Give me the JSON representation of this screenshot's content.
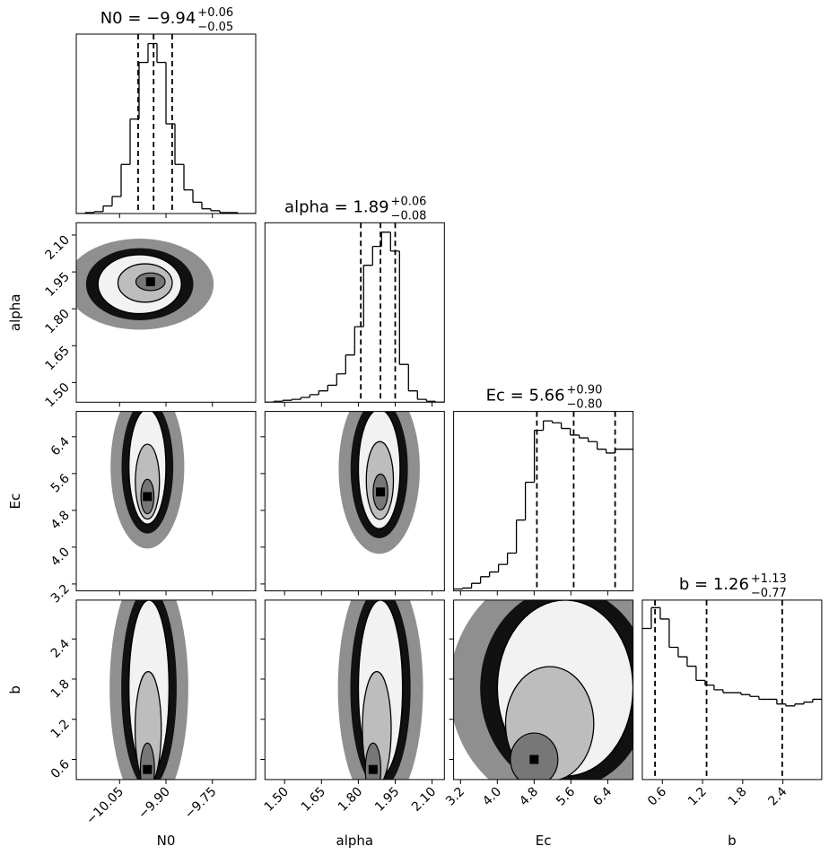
{
  "chart_data": {
    "type": "corner",
    "parameters": [
      {
        "name": "N0",
        "lim": [
          -10.19,
          -9.61
        ],
        "ticks": [
          {
            "value": -10.05,
            "label": "−10.05"
          },
          {
            "value": -9.9,
            "label": "−9.90"
          },
          {
            "value": -9.75,
            "label": "−9.75"
          }
        ],
        "title": {
          "text": "N0 = −9.94",
          "sup": "+0.06",
          "sub": "−0.05"
        },
        "quantiles": [
          -9.99,
          -9.94,
          -9.88
        ],
        "hist": {
          "bins": [
            -10.19,
            -10.161,
            -10.132,
            -10.103,
            -10.074,
            -10.045,
            -10.016,
            -9.987,
            -9.958,
            -9.929,
            -9.9,
            -9.871,
            -9.842,
            -9.813,
            -9.784,
            -9.755,
            -9.726,
            -9.697,
            -9.668,
            -9.639,
            -9.61
          ],
          "counts": [
            0,
            1,
            2,
            8,
            18,
            52,
            100,
            160,
            180,
            160,
            95,
            52,
            25,
            12,
            5,
            3,
            1,
            1,
            0,
            0
          ],
          "ylim": [
            0,
            190
          ]
        }
      },
      {
        "name": "alpha",
        "lim": [
          1.42,
          2.15
        ],
        "ticks": [
          {
            "value": 1.5,
            "label": "1.50"
          },
          {
            "value": 1.65,
            "label": "1.65"
          },
          {
            "value": 1.8,
            "label": "1.80"
          },
          {
            "value": 1.95,
            "label": "1.95"
          },
          {
            "value": 2.1,
            "label": "2.10"
          }
        ],
        "title": {
          "text": "alpha = 1.89",
          "sup": "+0.06",
          "sub": "−0.08"
        },
        "quantiles": [
          1.81,
          1.89,
          1.95
        ],
        "hist": {
          "bins": [
            1.42,
            1.4565,
            1.493,
            1.5295,
            1.566,
            1.6025,
            1.639,
            1.6755,
            1.712,
            1.7485,
            1.785,
            1.8215,
            1.858,
            1.8945,
            1.931,
            1.9675,
            2.004,
            2.0405,
            2.077,
            2.1135,
            2.15
          ],
          "counts": [
            0,
            1,
            2,
            3,
            5,
            8,
            12,
            18,
            30,
            50,
            80,
            145,
            165,
            180,
            160,
            40,
            12,
            3,
            1,
            0
          ],
          "ylim": [
            0,
            190
          ]
        }
      },
      {
        "name": "Ec",
        "lim": [
          3.05,
          6.95
        ],
        "ticks": [
          3.2,
          {
            "value": 4.0,
            "label": "4.0"
          },
          4.8,
          5.6,
          6.4
        ],
        "title": {
          "text": "Ec = 5.66",
          "sup": "+0.90",
          "sub": "−0.80"
        },
        "quantiles": [
          4.86,
          5.66,
          6.56
        ],
        "hist": {
          "bins": [
            3.05,
            3.245,
            3.44,
            3.635,
            3.83,
            4.025,
            4.22,
            4.415,
            4.61,
            4.805,
            5.0,
            5.195,
            5.39,
            5.585,
            5.78,
            5.975,
            6.17,
            6.365,
            6.56,
            6.755,
            6.95
          ],
          "counts": [
            2,
            3,
            8,
            15,
            20,
            28,
            40,
            75,
            115,
            170,
            180,
            178,
            172,
            165,
            162,
            158,
            150,
            146,
            150,
            150
          ],
          "ylim": [
            0,
            190
          ]
        }
      },
      {
        "name": "b",
        "lim": [
          0.3,
          2.98
        ],
        "ticks": [
          0.6,
          1.2,
          1.8,
          2.4
        ],
        "title": {
          "text": "b = 1.26",
          "sup": "+1.13",
          "sub": "−0.77"
        },
        "quantiles": [
          0.49,
          1.26,
          2.39
        ],
        "hist": {
          "bins": [
            0.3,
            0.434,
            0.568,
            0.702,
            0.836,
            0.97,
            1.104,
            1.238,
            1.372,
            1.506,
            1.64,
            1.774,
            1.908,
            2.042,
            2.176,
            2.31,
            2.444,
            2.578,
            2.712,
            2.846,
            2.98
          ],
          "counts": [
            160,
            182,
            170,
            140,
            130,
            120,
            105,
            100,
            95,
            92,
            92,
            90,
            88,
            85,
            85,
            80,
            78,
            80,
            82,
            85
          ],
          "ylim": [
            0,
            190
          ]
        }
      }
    ],
    "pairs": [
      {
        "peak": [
          -9.95,
          1.91
        ],
        "extent": [
          -10.12,
          -9.85,
          1.78,
          2.02
        ]
      },
      {
        "peak": [
          -9.96,
          5.1
        ],
        "extent": [
          -10.02,
          -9.9,
          4.5,
          7.0
        ]
      },
      {
        "peak": [
          1.89,
          5.2
        ],
        "extent": [
          1.8,
          1.97,
          4.4,
          7.0
        ]
      },
      {
        "peak": [
          -9.96,
          0.45
        ],
        "extent": [
          -10.02,
          -9.89,
          0.35,
          2.98
        ]
      },
      {
        "peak": [
          1.86,
          0.45
        ],
        "extent": [
          1.8,
          1.98,
          0.35,
          2.98
        ]
      },
      {
        "peak": [
          4.8,
          0.6
        ],
        "extent": [
          4.0,
          6.95,
          0.35,
          2.98
        ]
      }
    ]
  }
}
